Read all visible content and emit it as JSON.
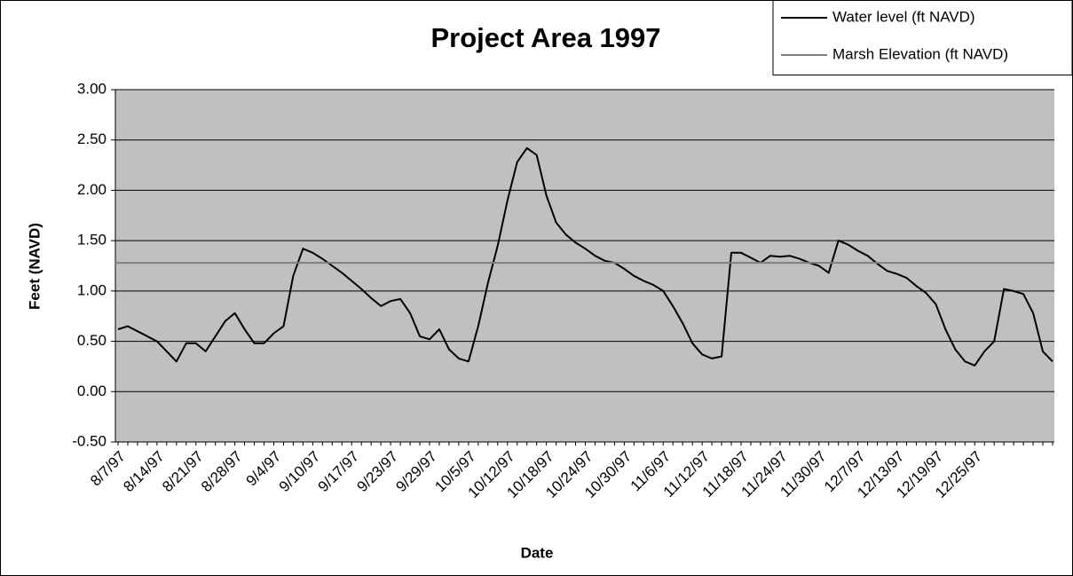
{
  "chart_data": {
    "type": "line",
    "title": "Project Area 1997",
    "x_label": "Date",
    "y_label": "Feet (NAVD)",
    "categories": [
      "8/7/97",
      null,
      null,
      null,
      "8/14/97",
      null,
      null,
      null,
      "8/21/97",
      null,
      null,
      null,
      "8/28/97",
      null,
      null,
      null,
      "9/4/97",
      null,
      null,
      null,
      "9/10/97",
      null,
      null,
      null,
      "9/17/97",
      null,
      null,
      null,
      "9/23/97",
      null,
      null,
      null,
      "9/29/97",
      null,
      null,
      null,
      "10/5/97",
      null,
      null,
      null,
      "10/12/97",
      null,
      null,
      null,
      "10/18/97",
      null,
      null,
      null,
      "10/24/97",
      null,
      null,
      null,
      "10/30/97",
      null,
      null,
      null,
      "11/6/97",
      null,
      null,
      null,
      "11/12/97",
      null,
      null,
      null,
      "11/18/97",
      null,
      null,
      null,
      "11/24/97",
      null,
      null,
      null,
      "11/30/97",
      null,
      null,
      null,
      "12/7/97",
      null,
      null,
      null,
      "12/13/97",
      null,
      null,
      null,
      "12/19/97",
      null,
      null,
      null,
      "12/25/97",
      null,
      null,
      null,
      null,
      null,
      null,
      null,
      null
    ],
    "series": [
      {
        "name": "Water level (ft NAVD)",
        "color": "#000000",
        "values": [
          0.62,
          0.65,
          0.6,
          0.55,
          0.5,
          0.4,
          0.3,
          0.48,
          0.48,
          0.4,
          0.55,
          0.7,
          0.78,
          0.62,
          0.48,
          0.48,
          0.58,
          0.65,
          1.15,
          1.42,
          1.38,
          1.32,
          1.25,
          1.18,
          1.1,
          1.02,
          0.93,
          0.85,
          0.9,
          0.92,
          0.78,
          0.55,
          0.52,
          0.62,
          0.42,
          0.33,
          0.3,
          0.65,
          1.08,
          1.45,
          1.9,
          2.28,
          2.42,
          2.35,
          1.95,
          1.68,
          1.56,
          1.48,
          1.42,
          1.35,
          1.3,
          1.28,
          1.22,
          1.15,
          1.1,
          1.06,
          1.0,
          0.85,
          0.68,
          0.48,
          0.37,
          0.33,
          0.35,
          1.38,
          1.38,
          1.33,
          1.28,
          1.35,
          1.34,
          1.35,
          1.32,
          1.28,
          1.25,
          1.18,
          1.5,
          1.46,
          1.4,
          1.35,
          1.27,
          1.2,
          1.17,
          1.13,
          1.05,
          0.98,
          0.87,
          0.62,
          0.42,
          0.3,
          0.26,
          0.4,
          0.5,
          1.02,
          1.0,
          0.97,
          0.78,
          0.4,
          0.3
        ]
      },
      {
        "name": "Marsh Elevation (ft NAVD)",
        "color": "#808080",
        "level": 1.28
      }
    ],
    "ylim": [
      -0.5,
      3.0
    ],
    "yticks": [
      {
        "value": -0.5,
        "label": "-0.50"
      },
      {
        "value": 0,
        "label": "0.00"
      },
      {
        "value": 0.5,
        "label": "0.50"
      },
      {
        "value": 1,
        "label": "1.00"
      },
      {
        "value": 1.5,
        "label": "1.50"
      },
      {
        "value": 2,
        "label": "2.00"
      },
      {
        "value": 2.5,
        "label": "2.50"
      },
      {
        "value": 3,
        "label": "3.00"
      }
    ],
    "grid": true,
    "plot_background": "#c0c0c0",
    "legend": "top-right"
  }
}
